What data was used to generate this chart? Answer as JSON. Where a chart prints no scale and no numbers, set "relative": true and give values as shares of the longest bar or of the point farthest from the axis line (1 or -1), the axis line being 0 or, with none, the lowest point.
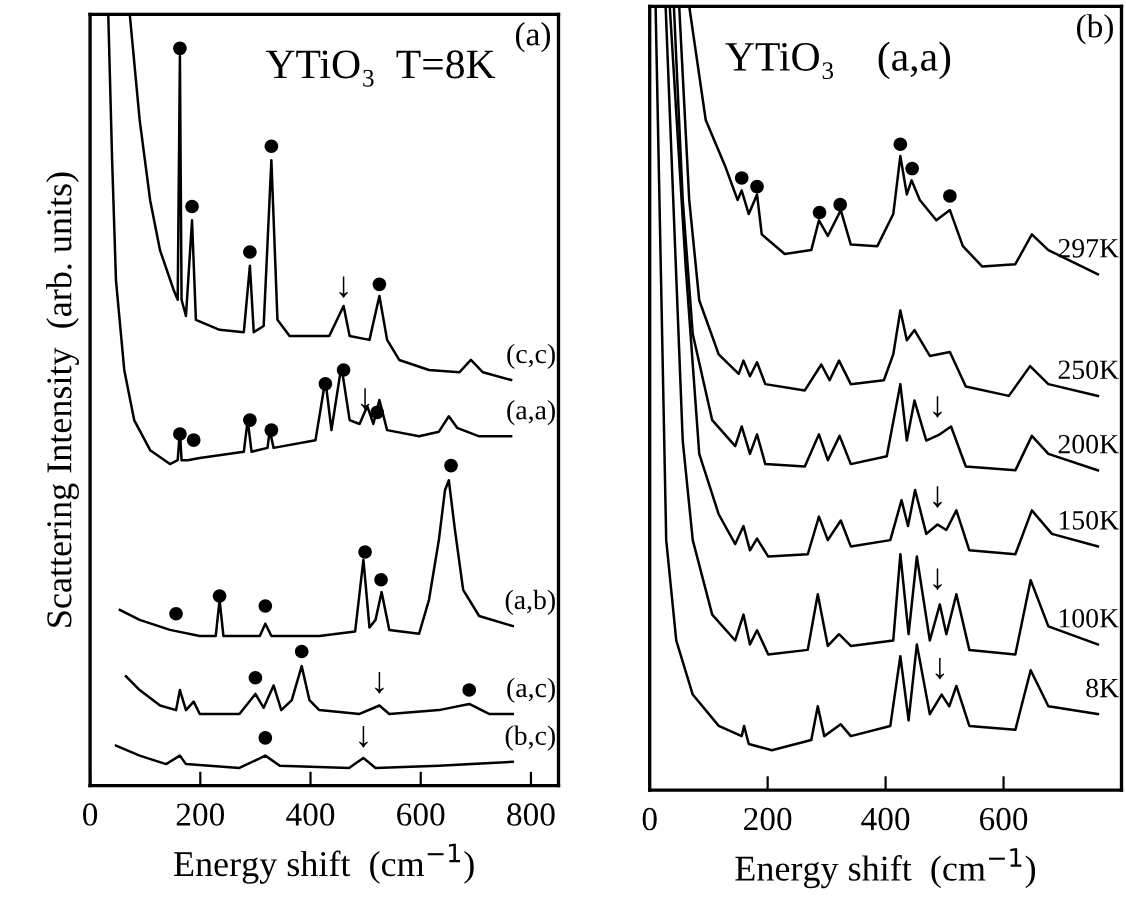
{
  "chart_data": [
    {
      "type": "line",
      "title": "YTiO₃  T=8K",
      "xlabel": "Energy shift  (cm$^{−1}$)",
      "ylabel": "Scattering Intensity  (arb. units)",
      "relative": true,
      "xlim": [
        0,
        850
      ],
      "xticks": [
        0,
        200,
        400,
        600,
        800
      ],
      "annotations": [
        "(a)",
        {
          "text": "↓",
          "x": 460,
          "y": 0.624
        },
        {
          "text": "↓",
          "x": 499,
          "y": 0.479
        },
        {
          "text": "↓",
          "x": 525,
          "y": 0.111
        },
        {
          "text": "↓",
          "x": 496,
          "y": 0.041
        }
      ],
      "series": [
        {
          "name": "(c,c)",
          "color": "#000000",
          "x": [
            72,
            90,
            109,
            127,
            152,
            159,
            163,
            166,
            174,
            185,
            192,
            235,
            279,
            290,
            297,
            315,
            329,
            340,
            362,
            434,
            460,
            471,
            507,
            525,
            539,
            561,
            615,
            670,
            691,
            713,
            764
          ],
          "values": [
            1.0,
            0.863,
            0.759,
            0.694,
            0.642,
            0.63,
            0.946,
            0.63,
            0.609,
            0.733,
            0.604,
            0.591,
            0.588,
            0.674,
            0.588,
            0.596,
            0.811,
            0.604,
            0.583,
            0.583,
            0.622,
            0.583,
            0.578,
            0.635,
            0.578,
            0.552,
            0.539,
            0.536,
            0.552,
            0.536,
            0.526
          ]
        },
        {
          "name": "(a,a)",
          "color": "#000000",
          "x": [
            33,
            40,
            47,
            62,
            80,
            109,
            145,
            159,
            163,
            166,
            177,
            199,
            279,
            286,
            293,
            322,
            326,
            333,
            409,
            427,
            438,
            456,
            471,
            489,
            503,
            514,
            525,
            539,
            597,
            633,
            651,
            666,
            706,
            764
          ],
          "values": [
            1.0,
            0.811,
            0.655,
            0.539,
            0.474,
            0.435,
            0.417,
            0.422,
            0.461,
            0.422,
            0.422,
            0.425,
            0.433,
            0.474,
            0.433,
            0.438,
            0.461,
            0.438,
            0.448,
            0.526,
            0.461,
            0.544,
            0.474,
            0.469,
            0.492,
            0.469,
            0.5,
            0.461,
            0.453,
            0.459,
            0.479,
            0.464,
            0.453,
            0.453
          ]
        },
        {
          "name": "(a,b)",
          "color": "#000000",
          "x": [
            54,
            90,
            145,
            199,
            228,
            235,
            242,
            308,
            318,
            329,
            416,
            481,
            496,
            507,
            518,
            529,
            543,
            597,
            615,
            633,
            644,
            651,
            662,
            677,
            706,
            767
          ],
          "values": [
            0.228,
            0.215,
            0.202,
            0.194,
            0.194,
            0.241,
            0.194,
            0.194,
            0.21,
            0.194,
            0.194,
            0.2,
            0.293,
            0.205,
            0.215,
            0.251,
            0.202,
            0.197,
            0.241,
            0.319,
            0.383,
            0.396,
            0.332,
            0.254,
            0.22,
            0.207
          ]
        },
        {
          "name": "(a,c)",
          "color": "#000000",
          "x": [
            65,
            90,
            127,
            156,
            163,
            174,
            188,
            199,
            271,
            300,
            315,
            333,
            347,
            366,
            384,
            398,
            416,
            489,
            525,
            543,
            633,
            688,
            724,
            767
          ],
          "values": [
            0.142,
            0.124,
            0.104,
            0.098,
            0.124,
            0.098,
            0.109,
            0.093,
            0.093,
            0.119,
            0.101,
            0.13,
            0.098,
            0.111,
            0.155,
            0.111,
            0.098,
            0.093,
            0.104,
            0.093,
            0.098,
            0.106,
            0.093,
            0.093
          ]
        },
        {
          "name": "(b,c)",
          "color": "#000000",
          "x": [
            47,
            90,
            138,
            163,
            174,
            271,
            318,
            344,
            470,
            496,
            518,
            633,
            767
          ],
          "values": [
            0.052,
            0.039,
            0.028,
            0.039,
            0.028,
            0.023,
            0.039,
            0.026,
            0.023,
            0.036,
            0.023,
            0.026,
            0.031
          ]
        },
        {
          "type": "scatter",
          "marker": "circle",
          "color": "#000000",
          "x": [
            163,
            185,
            290,
            329,
            525,
            163,
            188,
            290,
            329,
            427,
            460,
            521,
            156,
            235,
            318,
            499,
            528,
            655,
            300,
            384,
            688,
            318
          ],
          "values": [
            0.956,
            0.751,
            0.692,
            0.829,
            0.65,
            0.456,
            0.448,
            0.474,
            0.461,
            0.521,
            0.539,
            0.484,
            0.223,
            0.246,
            0.233,
            0.303,
            0.267,
            0.415,
            0.14,
            0.174,
            0.124,
            0.062
          ]
        }
      ]
    },
    {
      "type": "line",
      "title": "YTiO₃    (a,a)",
      "xlabel": "Energy shift  (cm$^{−1}$)",
      "relative": true,
      "xlim": [
        0,
        800
      ],
      "xticks": [
        0,
        200,
        400,
        600
      ],
      "annotations": [
        "(b)",
        {
          "text": "↓",
          "x": 488,
          "y": 0.467
        },
        {
          "text": "↓",
          "x": 488,
          "y": 0.352
        },
        {
          "text": "↓",
          "x": 488,
          "y": 0.247
        },
        {
          "text": "↓",
          "x": 492,
          "y": 0.133
        }
      ],
      "series": [
        {
          "name": "297K",
          "color": "#000000",
          "x": [
            67,
            95,
            128,
            149,
            156,
            168,
            182,
            190,
            229,
            274,
            287,
            302,
            324,
            341,
            386,
            413,
            425,
            436,
            444,
            458,
            486,
            509,
            531,
            564,
            620,
            648,
            676,
            760
          ],
          "values": [
            1.0,
            0.855,
            0.796,
            0.753,
            0.765,
            0.735,
            0.76,
            0.709,
            0.684,
            0.689,
            0.727,
            0.707,
            0.74,
            0.696,
            0.694,
            0.735,
            0.809,
            0.76,
            0.778,
            0.753,
            0.727,
            0.74,
            0.694,
            0.668,
            0.671,
            0.709,
            0.689,
            0.658
          ]
        },
        {
          "name": "250K",
          "color": "#000000",
          "x": [
            50,
            67,
            84,
            117,
            151,
            159,
            170,
            182,
            196,
            263,
            291,
            305,
            321,
            341,
            397,
            413,
            425,
            436,
            449,
            475,
            509,
            536,
            609,
            645,
            676,
            760
          ],
          "values": [
            1.0,
            0.753,
            0.625,
            0.556,
            0.531,
            0.548,
            0.528,
            0.546,
            0.518,
            0.51,
            0.543,
            0.523,
            0.548,
            0.518,
            0.523,
            0.556,
            0.612,
            0.574,
            0.587,
            0.554,
            0.559,
            0.515,
            0.503,
            0.541,
            0.518,
            0.503
          ]
        },
        {
          "name": "200K",
          "color": "#000000",
          "x": [
            41,
            56,
            73,
            106,
            145,
            156,
            170,
            182,
            196,
            263,
            287,
            302,
            322,
            341,
            402,
            425,
            436,
            449,
            469,
            492,
            511,
            536,
            620,
            648,
            676,
            760
          ],
          "values": [
            1.0,
            0.753,
            0.582,
            0.472,
            0.439,
            0.464,
            0.429,
            0.454,
            0.416,
            0.413,
            0.454,
            0.421,
            0.452,
            0.416,
            0.426,
            0.518,
            0.446,
            0.497,
            0.446,
            0.454,
            0.464,
            0.413,
            0.408,
            0.452,
            0.429,
            0.408
          ]
        },
        {
          "name": "150K",
          "color": "#000000",
          "x": [
            34,
            61,
            84,
            117,
            145,
            159,
            170,
            182,
            201,
            268,
            287,
            302,
            324,
            341,
            408,
            427,
            438,
            450,
            469,
            488,
            503,
            520,
            542,
            620,
            648,
            682,
            760
          ],
          "values": [
            1.0,
            0.668,
            0.429,
            0.352,
            0.314,
            0.337,
            0.306,
            0.321,
            0.298,
            0.301,
            0.349,
            0.319,
            0.344,
            0.311,
            0.319,
            0.37,
            0.337,
            0.383,
            0.327,
            0.339,
            0.332,
            0.357,
            0.306,
            0.301,
            0.357,
            0.327,
            0.311
          ]
        },
        {
          "name": "100K",
          "color": "#000000",
          "x": [
            27,
            56,
            73,
            106,
            145,
            159,
            170,
            182,
            201,
            268,
            285,
            302,
            321,
            341,
            413,
            425,
            439,
            453,
            475,
            492,
            503,
            520,
            542,
            620,
            646,
            676,
            760
          ],
          "values": [
            1.0,
            0.446,
            0.319,
            0.224,
            0.191,
            0.224,
            0.186,
            0.204,
            0.173,
            0.179,
            0.25,
            0.184,
            0.199,
            0.184,
            0.191,
            0.301,
            0.199,
            0.298,
            0.191,
            0.237,
            0.199,
            0.25,
            0.179,
            0.173,
            0.268,
            0.209,
            0.186
          ]
        },
        {
          "name": "8K",
          "color": "#000000",
          "x": [
            10,
            28,
            45,
            73,
            117,
            156,
            160,
            168,
            207,
            274,
            285,
            296,
            324,
            341,
            408,
            425,
            439,
            453,
            475,
            495,
            508,
            520,
            542,
            620,
            646,
            676,
            760
          ],
          "values": [
            1.0,
            0.319,
            0.191,
            0.122,
            0.082,
            0.069,
            0.082,
            0.059,
            0.051,
            0.064,
            0.107,
            0.069,
            0.084,
            0.069,
            0.082,
            0.171,
            0.089,
            0.186,
            0.097,
            0.122,
            0.107,
            0.133,
            0.082,
            0.077,
            0.153,
            0.107,
            0.097
          ]
        },
        {
          "type": "scatter",
          "marker": "circle",
          "color": "#000000",
          "x": [
            156,
            182,
            288,
            323,
            425,
            445,
            509
          ],
          "values": [
            0.781,
            0.77,
            0.737,
            0.747,
            0.824,
            0.793,
            0.758
          ]
        }
      ]
    }
  ]
}
